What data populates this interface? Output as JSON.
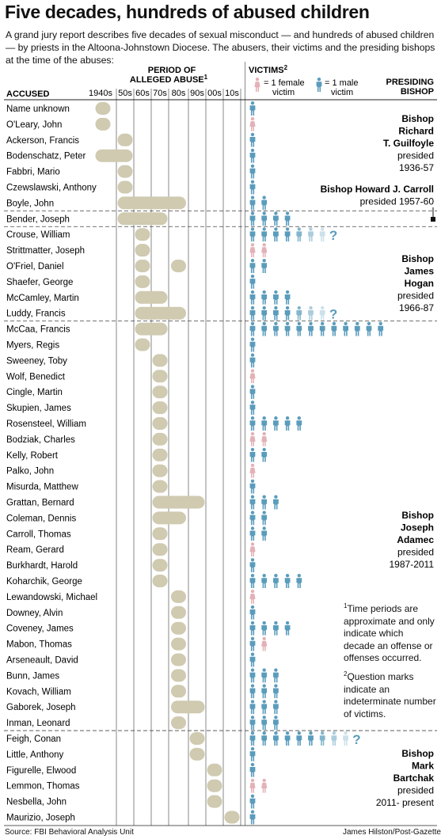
{
  "header": {
    "title": "Five decades, hundreds of abused children",
    "intro": "A grand jury report describes five decades of sexual misconduct — and hundreds of abused children — by priests in the Altoona-Johnstown Diocese. The abusers, their victims and the presiding bishops at the time of the abuses:"
  },
  "columns": {
    "accused": "ACCUSED",
    "period_line1": "PERIOD OF",
    "period_line2": "ALLEGED ABUSE",
    "period_sup": "1",
    "victims": "VICTIMS",
    "victims_sup": "2",
    "female_legend": "= 1 female",
    "female_legend2": "victim",
    "male_legend": "= 1 male",
    "male_legend2": "victim",
    "bishop_line1": "PRESIDING",
    "bishop_line2": "BISHOP"
  },
  "colors": {
    "bar": "#cfcab0",
    "male": "#5a9cbc",
    "male_light": "#b9d6e4",
    "female": "#e3b1b6",
    "grid": "#555555"
  },
  "footnotes": {
    "note1_mark": "1",
    "note1": "Time periods are approximate and only indicate which decade an offense or offenses occurred.",
    "note2_mark": "2",
    "note2": "Question marks indicate an indeterminate number of victims."
  },
  "footer": {
    "source": "Source: FBI Behavioral Analysis Unit",
    "credit": "James Hilston/Post-Gazette"
  },
  "chart_data": {
    "type": "table",
    "decades": [
      "1940s",
      "50s",
      "60s",
      "70s",
      "80s",
      "90s",
      "00s",
      "10s"
    ],
    "question_mark": "?",
    "rows": [
      {
        "name": "Name unknown",
        "periods": [
          [
            0,
            0
          ]
        ],
        "male": 1,
        "female": 0,
        "unknown": false
      },
      {
        "name": "O'Leary, John",
        "periods": [
          [
            0,
            0
          ]
        ],
        "male": 0,
        "female": 1,
        "unknown": false
      },
      {
        "name": "Ackerson, Francis",
        "periods": [
          [
            1,
            1
          ]
        ],
        "male": 1,
        "female": 0,
        "unknown": false
      },
      {
        "name": "Bodenschatz, Peter",
        "periods": [
          [
            0,
            1
          ]
        ],
        "male": 1,
        "female": 0,
        "unknown": false
      },
      {
        "name": "Fabbri, Mario",
        "periods": [
          [
            1,
            1
          ]
        ],
        "male": 1,
        "female": 0,
        "unknown": false
      },
      {
        "name": "Czewslawski, Anthony",
        "periods": [
          [
            1,
            1
          ]
        ],
        "male": 1,
        "female": 0,
        "unknown": false
      },
      {
        "name": "Boyle, John",
        "periods": [
          [
            1,
            4
          ]
        ],
        "male": 2,
        "female": 0,
        "unknown": false
      },
      {
        "name": "Bender, Joseph",
        "periods": [
          [
            1,
            3
          ]
        ],
        "male": 4,
        "female": 0,
        "unknown": false
      },
      {
        "name": "Crouse, William",
        "periods": [
          [
            2,
            2
          ]
        ],
        "male": 4,
        "female": 0,
        "unknown": true
      },
      {
        "name": "Strittmatter, Joseph",
        "periods": [
          [
            2,
            2
          ]
        ],
        "male": 0,
        "female": 2,
        "unknown": false
      },
      {
        "name": "O'Friel, Daniel",
        "periods": [
          [
            2,
            2
          ],
          [
            4,
            4
          ]
        ],
        "male": 2,
        "female": 0,
        "unknown": false
      },
      {
        "name": "Shaefer, George",
        "periods": [
          [
            2,
            2
          ]
        ],
        "male": 1,
        "female": 0,
        "unknown": false
      },
      {
        "name": "McCamley, Martin",
        "periods": [
          [
            2,
            3
          ]
        ],
        "male": 4,
        "female": 0,
        "unknown": false
      },
      {
        "name": "Luddy, Francis",
        "periods": [
          [
            2,
            4
          ]
        ],
        "male": 4,
        "female": 0,
        "unknown": true
      },
      {
        "name": "McCaa, Francis",
        "periods": [
          [
            2,
            3
          ]
        ],
        "male": 12,
        "female": 0,
        "unknown": false
      },
      {
        "name": "Myers, Regis",
        "periods": [
          [
            2,
            2
          ]
        ],
        "male": 1,
        "female": 0,
        "unknown": false
      },
      {
        "name": "Sweeney, Toby",
        "periods": [
          [
            3,
            3
          ]
        ],
        "male": 1,
        "female": 0,
        "unknown": false
      },
      {
        "name": "Wolf, Benedict",
        "periods": [
          [
            3,
            3
          ]
        ],
        "male": 0,
        "female": 1,
        "unknown": false
      },
      {
        "name": "Cingle, Martin",
        "periods": [
          [
            3,
            3
          ]
        ],
        "male": 1,
        "female": 0,
        "unknown": false
      },
      {
        "name": "Skupien, James",
        "periods": [
          [
            3,
            3
          ]
        ],
        "male": 1,
        "female": 0,
        "unknown": false
      },
      {
        "name": "Rosensteel, William",
        "periods": [
          [
            3,
            3
          ]
        ],
        "male": 5,
        "female": 0,
        "unknown": false
      },
      {
        "name": "Bodziak, Charles",
        "periods": [
          [
            3,
            3
          ]
        ],
        "male": 0,
        "female": 2,
        "unknown": false
      },
      {
        "name": "Kelly, Robert",
        "periods": [
          [
            3,
            3
          ]
        ],
        "male": 2,
        "female": 0,
        "unknown": false
      },
      {
        "name": "Palko, John",
        "periods": [
          [
            3,
            3
          ]
        ],
        "male": 0,
        "female": 1,
        "unknown": false
      },
      {
        "name": "Misurda, Matthew",
        "periods": [
          [
            3,
            3
          ]
        ],
        "male": 1,
        "female": 0,
        "unknown": false
      },
      {
        "name": "Grattan, Bernard",
        "periods": [
          [
            3,
            5
          ]
        ],
        "male": 3,
        "female": 0,
        "unknown": false
      },
      {
        "name": "Coleman, Dennis",
        "periods": [
          [
            3,
            4
          ]
        ],
        "male": 2,
        "female": 0,
        "unknown": false
      },
      {
        "name": "Carroll, Thomas",
        "periods": [
          [
            3,
            3
          ]
        ],
        "male": 2,
        "female": 0,
        "unknown": false
      },
      {
        "name": "Ream, Gerard",
        "periods": [
          [
            3,
            3
          ]
        ],
        "male": 0,
        "female": 1,
        "unknown": false
      },
      {
        "name": "Burkhardt, Harold",
        "periods": [
          [
            3,
            3
          ]
        ],
        "male": 1,
        "female": 0,
        "unknown": false
      },
      {
        "name": "Koharchik, George",
        "periods": [
          [
            3,
            3
          ]
        ],
        "male": 5,
        "female": 0,
        "unknown": false
      },
      {
        "name": "Lewandowski, Michael",
        "periods": [
          [
            4,
            4
          ]
        ],
        "male": 0,
        "female": 1,
        "unknown": false
      },
      {
        "name": "Downey, Alvin",
        "periods": [
          [
            4,
            4
          ]
        ],
        "male": 1,
        "female": 0,
        "unknown": false
      },
      {
        "name": "Coveney, James",
        "periods": [
          [
            4,
            4
          ]
        ],
        "male": 4,
        "female": 0,
        "unknown": false
      },
      {
        "name": "Mabon, Thomas",
        "periods": [
          [
            4,
            4
          ]
        ],
        "male": 1,
        "female": 1,
        "unknown": false
      },
      {
        "name": "Arseneault, David",
        "periods": [
          [
            4,
            4
          ]
        ],
        "male": 1,
        "female": 0,
        "unknown": false
      },
      {
        "name": "Bunn, James",
        "periods": [
          [
            4,
            4
          ]
        ],
        "male": 3,
        "female": 0,
        "unknown": false
      },
      {
        "name": "Kovach, William",
        "periods": [
          [
            4,
            4
          ]
        ],
        "male": 3,
        "female": 0,
        "unknown": false
      },
      {
        "name": "Gaborek, Joseph",
        "periods": [
          [
            4,
            5
          ]
        ],
        "male": 3,
        "female": 0,
        "unknown": false
      },
      {
        "name": "Inman, Leonard",
        "periods": [
          [
            4,
            4
          ]
        ],
        "male": 3,
        "female": 0,
        "unknown": false
      },
      {
        "name": "Feigh, Conan",
        "periods": [
          [
            5,
            5
          ]
        ],
        "male": 6,
        "female": 0,
        "unknown": true
      },
      {
        "name": "Little, Anthony",
        "periods": [
          [
            5,
            5
          ]
        ],
        "male": 1,
        "female": 0,
        "unknown": false
      },
      {
        "name": "Figurelle, Elwood",
        "periods": [
          [
            6,
            6
          ]
        ],
        "male": 1,
        "female": 0,
        "unknown": false
      },
      {
        "name": "Lemmon, Thomas",
        "periods": [
          [
            6,
            6
          ]
        ],
        "male": 0,
        "female": 2,
        "unknown": false
      },
      {
        "name": "Nesbella, John",
        "periods": [
          [
            6,
            6
          ]
        ],
        "male": 1,
        "female": 0,
        "unknown": false
      },
      {
        "name": "Maurizio, Joseph",
        "periods": [
          [
            7,
            7
          ]
        ],
        "male": 1,
        "female": 0,
        "unknown": false
      }
    ],
    "group_dividers_after_row": [
      6,
      7,
      13,
      39
    ],
    "bishops": [
      {
        "bold": [
          "Bishop",
          "Richard",
          "T. Guilfoyle"
        ],
        "plain": [
          "presided",
          "1936-57"
        ]
      },
      {
        "bold": [
          "Bishop Howard J. Carroll"
        ],
        "plain": [
          "presided 1957-60"
        ]
      },
      {
        "bold": [
          "Bishop",
          "James",
          "Hogan"
        ],
        "plain": [
          "presided",
          "1966-87"
        ]
      },
      {
        "bold": [
          "Bishop",
          "Joseph",
          "Adamec"
        ],
        "plain": [
          "presided",
          "1987-2011"
        ]
      },
      {
        "bold": [
          "Bishop",
          "Mark",
          "Bartchak"
        ],
        "plain": [
          "presided",
          "2011- present"
        ]
      }
    ]
  }
}
